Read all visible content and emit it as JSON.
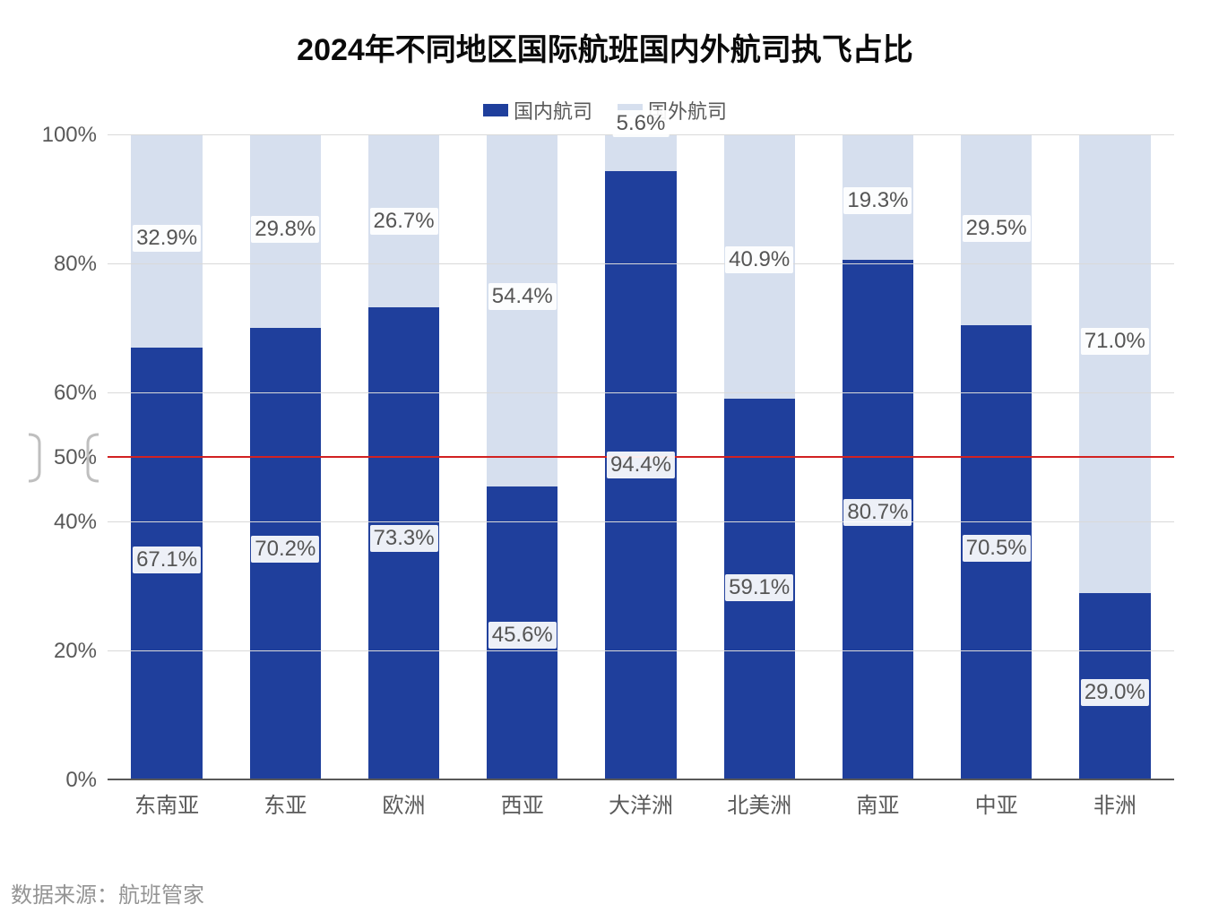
{
  "chart": {
    "type": "stacked-bar-100pct",
    "title": "2024年不同地区国际航班国内外航司执飞占比",
    "title_fontsize": 34,
    "title_color": "#0a0a0a",
    "legend_items": [
      {
        "label": "国内航司",
        "color": "#1f3f9c"
      },
      {
        "label": "国外航司",
        "color": "#d6dfee"
      }
    ],
    "legend_fontsize": 22,
    "categories": [
      "东南亚",
      "东亚",
      "欧洲",
      "西亚",
      "大洋洲",
      "北美洲",
      "南亚",
      "中亚",
      "非洲"
    ],
    "series": [
      {
        "name": "国内航司",
        "color": "#1f3f9c",
        "values": [
          67.1,
          70.2,
          73.3,
          45.6,
          94.4,
          59.1,
          80.7,
          70.5,
          29.0
        ]
      },
      {
        "name": "国外航司",
        "color": "#d6dfee",
        "values": [
          32.9,
          29.8,
          26.7,
          54.4,
          5.6,
          40.9,
          19.3,
          29.5,
          71.0
        ]
      }
    ],
    "value_suffix": "%",
    "yaxis": {
      "min": 0,
      "max": 100,
      "tick_step": 20,
      "tick_suffix": "%",
      "tick_fontsize": 24,
      "tick_color": "#595959",
      "grid_color": "#d9d9d9",
      "axis_color": "#595959"
    },
    "reference_line": {
      "value": 50,
      "color": "#d22222",
      "width": 2,
      "highlighted_tick": true
    },
    "bar_width_pct": 60,
    "value_label_fontsize": 24,
    "category_label_fontsize": 24,
    "background_color": "#ffffff"
  },
  "source_note": "数据来源：航班管家",
  "source_note_fontsize": 24,
  "source_note_color": "#949494"
}
